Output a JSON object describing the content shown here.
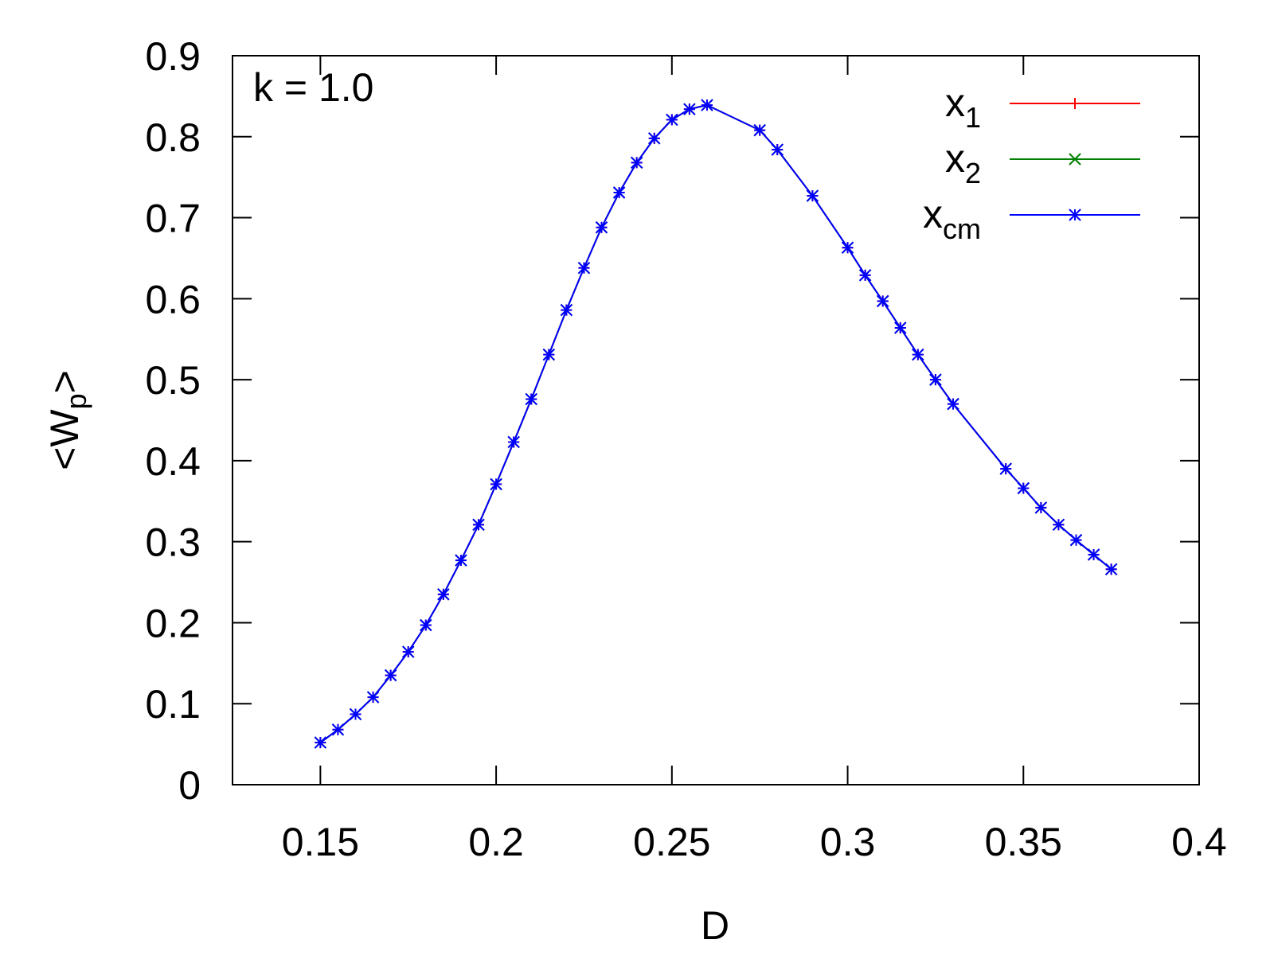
{
  "chart_data": {
    "type": "line",
    "title": "",
    "annotation": "k = 1.0",
    "xlabel": "D",
    "ylabel_main": "<W",
    "ylabel_sub": "p",
    "ylabel_end": ">",
    "xlim": [
      0.125,
      0.4
    ],
    "ylim": [
      0,
      0.9
    ],
    "xticks": [
      0.15,
      0.2,
      0.25,
      0.3,
      0.35,
      0.4
    ],
    "xtick_labels": [
      "0.15",
      "0.2",
      "0.25",
      "0.3",
      "0.35",
      "0.4"
    ],
    "yticks": [
      0,
      0.1,
      0.2,
      0.3,
      0.4,
      0.5,
      0.6,
      0.7,
      0.8,
      0.9
    ],
    "ytick_labels": [
      "0",
      "0.1",
      "0.2",
      "0.3",
      "0.4",
      "0.5",
      "0.6",
      "0.7",
      "0.8",
      "0.9"
    ],
    "grid": false,
    "legend_position": "top-right",
    "x": [
      0.15,
      0.155,
      0.16,
      0.165,
      0.17,
      0.175,
      0.18,
      0.185,
      0.19,
      0.195,
      0.2,
      0.205,
      0.21,
      0.215,
      0.22,
      0.225,
      0.23,
      0.235,
      0.24,
      0.245,
      0.25,
      0.255,
      0.26,
      0.275,
      0.28,
      0.29,
      0.3,
      0.305,
      0.31,
      0.315,
      0.32,
      0.325,
      0.33,
      0.345,
      0.35,
      0.355,
      0.36,
      0.365,
      0.37,
      0.375
    ],
    "series": [
      {
        "name": "x",
        "sub": "1",
        "color": "#ff0000",
        "marker": "plus",
        "values": [
          0.052,
          0.068,
          0.087,
          0.108,
          0.135,
          0.164,
          0.197,
          0.235,
          0.277,
          0.321,
          0.371,
          0.423,
          0.476,
          0.531,
          0.586,
          0.638,
          0.688,
          0.731,
          0.768,
          0.798,
          0.821,
          0.834,
          0.839,
          0.808,
          0.784,
          0.727,
          0.663,
          0.629,
          0.597,
          0.564,
          0.531,
          0.5,
          0.47,
          0.39,
          0.366,
          0.342,
          0.321,
          0.302,
          0.284,
          0.266
        ]
      },
      {
        "name": "x",
        "sub": "2",
        "color": "#008000",
        "marker": "cross",
        "values": [
          0.052,
          0.068,
          0.087,
          0.108,
          0.135,
          0.164,
          0.197,
          0.235,
          0.277,
          0.321,
          0.371,
          0.423,
          0.476,
          0.531,
          0.586,
          0.638,
          0.688,
          0.731,
          0.768,
          0.798,
          0.821,
          0.834,
          0.839,
          0.808,
          0.784,
          0.727,
          0.663,
          0.629,
          0.597,
          0.564,
          0.531,
          0.5,
          0.47,
          0.39,
          0.366,
          0.342,
          0.321,
          0.302,
          0.284,
          0.266
        ]
      },
      {
        "name": "x",
        "sub": "cm",
        "color": "#0000ff",
        "marker": "star",
        "values": [
          0.052,
          0.068,
          0.087,
          0.108,
          0.135,
          0.164,
          0.197,
          0.235,
          0.277,
          0.321,
          0.371,
          0.423,
          0.476,
          0.531,
          0.586,
          0.638,
          0.688,
          0.731,
          0.768,
          0.798,
          0.821,
          0.834,
          0.839,
          0.808,
          0.784,
          0.727,
          0.663,
          0.629,
          0.597,
          0.564,
          0.531,
          0.5,
          0.47,
          0.39,
          0.366,
          0.342,
          0.321,
          0.302,
          0.284,
          0.266
        ]
      }
    ]
  }
}
